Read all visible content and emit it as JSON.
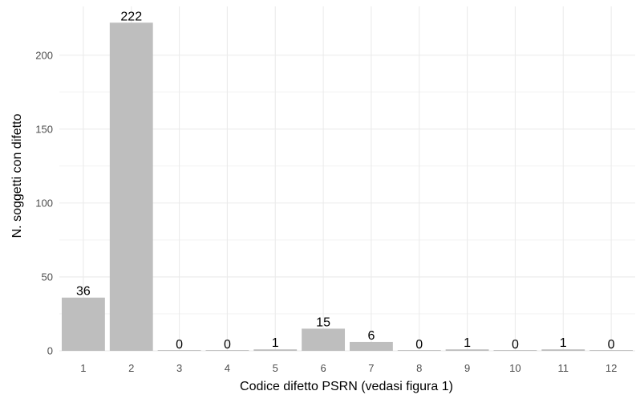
{
  "chart_data": {
    "type": "bar",
    "categories": [
      "1",
      "2",
      "3",
      "4",
      "5",
      "6",
      "7",
      "8",
      "9",
      "10",
      "11",
      "12"
    ],
    "values": [
      36,
      222,
      0,
      0,
      1,
      15,
      6,
      0,
      1,
      0,
      1,
      0
    ],
    "data_labels": [
      "36",
      "222",
      "0",
      "0",
      "1",
      "15",
      "6",
      "0",
      "1",
      "0",
      "1",
      "0"
    ],
    "xlabel": "Codice difetto PSRN (vedasi figura 1)",
    "ylabel": "N. soggetti con difetto",
    "yticks": [
      0,
      50,
      100,
      150,
      200
    ],
    "ylim": [
      0,
      233
    ],
    "grid": true,
    "bar_color": "#bebebe",
    "grid_color": "#ebebeb"
  }
}
